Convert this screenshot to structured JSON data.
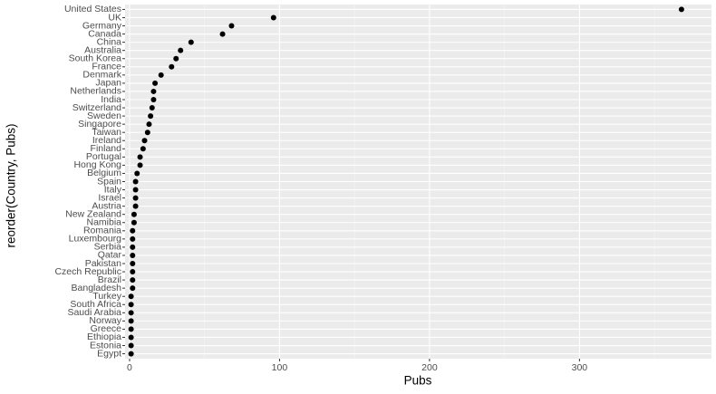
{
  "chart_data": {
    "type": "dot",
    "x_label": "Pubs",
    "y_label": "reorder(Country, Pubs)",
    "categories": [
      "United States",
      "UK",
      "Germany",
      "Canada",
      "China",
      "Australia",
      "South Korea",
      "France",
      "Denmark",
      "Japan",
      "Netherlands",
      "India",
      "Switzerland",
      "Sweden",
      "Singapore",
      "Taiwan",
      "Ireland",
      "Finland",
      "Portugal",
      "Hong Kong",
      "Belgium",
      "Spain",
      "Italy",
      "Israel",
      "Austria",
      "New Zealand",
      "Namibia",
      "Romania",
      "Luxembourg",
      "Serbia",
      "Qatar",
      "Pakistan",
      "Czech Republic",
      "Brazil",
      "Bangladesh",
      "Turkey",
      "South Africa",
      "Saudi Arabia",
      "Norway",
      "Greece",
      "Ethiopia",
      "Estonia",
      "Egypt"
    ],
    "values": [
      368,
      96,
      68,
      62,
      41,
      34,
      31,
      28,
      21,
      17,
      16,
      16,
      15,
      14,
      13,
      12,
      10,
      9,
      7,
      7,
      5,
      4,
      4,
      4,
      4,
      3,
      3,
      2,
      2,
      2,
      2,
      2,
      2,
      2,
      2,
      1,
      1,
      1,
      1,
      1,
      1,
      1,
      1
    ],
    "color": "#000000",
    "xlim": [
      -3,
      388
    ],
    "xticks": [
      0,
      100,
      200,
      300
    ],
    "minor_xticks": [
      50,
      150,
      250,
      350
    ],
    "grid": true
  }
}
